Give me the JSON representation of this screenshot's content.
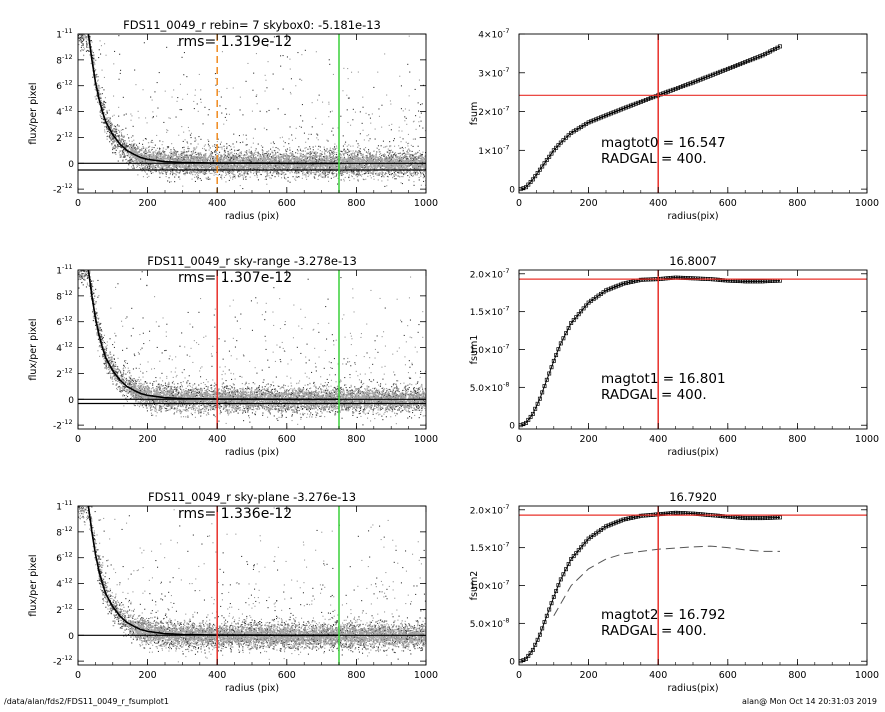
{
  "footer": {
    "left": "/data/alan/fds2/FDS11_0049_r_fsumplot1",
    "right": "alan@  Mon Oct 14 20:31:03 2019"
  },
  "colors": {
    "red": "#e8302a",
    "green": "#3ad13a",
    "orange": "#f08a1e",
    "grey": "#9a9a9a",
    "black": "#000000"
  },
  "chart_data": [
    {
      "id": "p1",
      "type": "scatter",
      "title": "FDS11_0049_r rebin= 7    skybox0: -5.181e-13",
      "annotation": "rms= 1.319e-12",
      "xlabel": "radius (pix)",
      "ylabel": "flux/per pixel",
      "xlim": [
        0,
        1000
      ],
      "ylim": [
        -2.3e-12,
        1e-11
      ],
      "xticks": [
        {
          "v": 0,
          "label": "0"
        },
        {
          "v": 200,
          "label": "200"
        },
        {
          "v": 400,
          "label": "400"
        },
        {
          "v": 600,
          "label": "600"
        },
        {
          "v": 800,
          "label": "800"
        },
        {
          "v": 1000,
          "label": "1000"
        }
      ],
      "yticks": [
        {
          "v": -2e-12,
          "mant": "-2",
          "exp": "-12"
        },
        {
          "v": 0,
          "mant": "0",
          "exp": ""
        },
        {
          "v": 2e-12,
          "mant": "2",
          "exp": "-12"
        },
        {
          "v": 4e-12,
          "mant": "4",
          "exp": "-12"
        },
        {
          "v": 6e-12,
          "mant": "6",
          "exp": "-12"
        },
        {
          "v": 8e-12,
          "mant": "8",
          "exp": "-12"
        },
        {
          "v": 1e-11,
          "mant": "1",
          "exp": "-11"
        }
      ],
      "hlines": [
        {
          "y": 0,
          "color": "black"
        },
        {
          "y": -5.181e-13,
          "color": "black"
        }
      ],
      "vlines": [
        {
          "x": 400,
          "color": "orange",
          "dashed": true
        },
        {
          "x": 750,
          "color": "green"
        }
      ],
      "profile": [
        [
          30,
          1e-11
        ],
        [
          40,
          8e-12
        ],
        [
          50,
          6.3e-12
        ],
        [
          60,
          5e-12
        ],
        [
          70,
          4e-12
        ],
        [
          80,
          3.2e-12
        ],
        [
          100,
          2.2e-12
        ],
        [
          120,
          1.5e-12
        ],
        [
          140,
          1e-12
        ],
        [
          160,
          7e-13
        ],
        [
          180,
          4.5e-13
        ],
        [
          200,
          3e-13
        ],
        [
          250,
          1.2e-13
        ],
        [
          300,
          6e-14
        ],
        [
          400,
          2e-14
        ],
        [
          500,
          1e-14
        ],
        [
          600,
          0
        ],
        [
          750,
          0
        ]
      ]
    },
    {
      "id": "p2",
      "type": "line",
      "title": "",
      "annotation_lines": [
        "magtot0 =  16.547",
        "RADGAL =    400."
      ],
      "xlabel": "radius(pix)",
      "ylabel": "fsum",
      "xlim": [
        0,
        1000
      ],
      "ylim": [
        -1e-08,
        4e-07
      ],
      "xticks": [
        {
          "v": 0,
          "label": "0"
        },
        {
          "v": 200,
          "label": "200"
        },
        {
          "v": 400,
          "label": "400"
        },
        {
          "v": 600,
          "label": "600"
        },
        {
          "v": 800,
          "label": "800"
        },
        {
          "v": 1000,
          "label": "1000"
        }
      ],
      "yticks": [
        {
          "v": 0,
          "mant": "0",
          "exp": ""
        },
        {
          "v": 1e-07,
          "mant": "1×10",
          "exp": "-7"
        },
        {
          "v": 2e-07,
          "mant": "2×10",
          "exp": "-7"
        },
        {
          "v": 3e-07,
          "mant": "3×10",
          "exp": "-7"
        },
        {
          "v": 4e-07,
          "mant": "4×10",
          "exp": "-7"
        }
      ],
      "hlines": [
        {
          "y": 2.42e-07,
          "color": "red"
        }
      ],
      "vlines": [
        {
          "x": 400,
          "color": "red"
        }
      ],
      "series": [
        {
          "points": [
            [
              5,
              0
            ],
            [
              20,
              5e-09
            ],
            [
              40,
              2.5e-08
            ],
            [
              60,
              5e-08
            ],
            [
              80,
              7.5e-08
            ],
            [
              100,
              1e-07
            ],
            [
              120,
              1.2e-07
            ],
            [
              150,
              1.45e-07
            ],
            [
              200,
              1.72e-07
            ],
            [
              250,
              1.9e-07
            ],
            [
              300,
              2.08e-07
            ],
            [
              350,
              2.25e-07
            ],
            [
              400,
              2.42e-07
            ],
            [
              500,
              2.75e-07
            ],
            [
              600,
              3.1e-07
            ],
            [
              700,
              3.45e-07
            ],
            [
              750,
              3.68e-07
            ]
          ],
          "style": "markers"
        }
      ]
    },
    {
      "id": "p3",
      "type": "scatter",
      "title": "FDS11_0049_r sky-range -3.278e-13",
      "annotation": "rms= 1.307e-12",
      "xlabel": "radius (pix)",
      "ylabel": "flux/per pixel",
      "xlim": [
        0,
        1000
      ],
      "ylim": [
        -2.3e-12,
        1e-11
      ],
      "xticks": [
        {
          "v": 0,
          "label": "0"
        },
        {
          "v": 200,
          "label": "200"
        },
        {
          "v": 400,
          "label": "400"
        },
        {
          "v": 600,
          "label": "600"
        },
        {
          "v": 800,
          "label": "800"
        },
        {
          "v": 1000,
          "label": "1000"
        }
      ],
      "yticks": [
        {
          "v": -2e-12,
          "mant": "-2",
          "exp": "-12"
        },
        {
          "v": 0,
          "mant": "0",
          "exp": ""
        },
        {
          "v": 2e-12,
          "mant": "2",
          "exp": "-12"
        },
        {
          "v": 4e-12,
          "mant": "4",
          "exp": "-12"
        },
        {
          "v": 6e-12,
          "mant": "6",
          "exp": "-12"
        },
        {
          "v": 8e-12,
          "mant": "8",
          "exp": "-12"
        },
        {
          "v": 1e-11,
          "mant": "1",
          "exp": "-11"
        }
      ],
      "hlines": [
        {
          "y": 0,
          "color": "black"
        },
        {
          "y": -3.278e-13,
          "color": "black"
        }
      ],
      "vlines": [
        {
          "x": 400,
          "color": "red"
        },
        {
          "x": 750,
          "color": "green"
        }
      ],
      "profile": [
        [
          30,
          1e-11
        ],
        [
          40,
          8e-12
        ],
        [
          50,
          6.3e-12
        ],
        [
          60,
          5e-12
        ],
        [
          70,
          4e-12
        ],
        [
          80,
          3.2e-12
        ],
        [
          100,
          2.2e-12
        ],
        [
          120,
          1.5e-12
        ],
        [
          140,
          1e-12
        ],
        [
          160,
          7e-13
        ],
        [
          180,
          4.5e-13
        ],
        [
          200,
          3e-13
        ],
        [
          250,
          1.2e-13
        ],
        [
          300,
          6e-14
        ],
        [
          400,
          2e-14
        ],
        [
          500,
          1e-14
        ],
        [
          600,
          0
        ],
        [
          750,
          0
        ]
      ]
    },
    {
      "id": "p4",
      "type": "line",
      "title": "16.8007",
      "annotation_lines": [
        "magtot1 =  16.801",
        "RADGAL =    400."
      ],
      "xlabel": "radius(pix)",
      "ylabel": "fsum1",
      "xlim": [
        0,
        1000
      ],
      "ylim": [
        -5e-09,
        2.05e-07
      ],
      "xticks": [
        {
          "v": 0,
          "label": "0"
        },
        {
          "v": 200,
          "label": "200"
        },
        {
          "v": 400,
          "label": "400"
        },
        {
          "v": 600,
          "label": "600"
        },
        {
          "v": 800,
          "label": "800"
        },
        {
          "v": 1000,
          "label": "1000"
        }
      ],
      "yticks": [
        {
          "v": 0,
          "mant": "0",
          "exp": ""
        },
        {
          "v": 5e-08,
          "mant": "5.0×10",
          "exp": "-8"
        },
        {
          "v": 1e-07,
          "mant": "1.0×10",
          "exp": "-7"
        },
        {
          "v": 1.5e-07,
          "mant": "1.5×10",
          "exp": "-7"
        },
        {
          "v": 2e-07,
          "mant": "2.0×10",
          "exp": "-7"
        }
      ],
      "hlines": [
        {
          "y": 1.93e-07,
          "color": "red"
        }
      ],
      "vlines": [
        {
          "x": 400,
          "color": "red"
        }
      ],
      "series": [
        {
          "points": [
            [
              5,
              0
            ],
            [
              20,
              3e-09
            ],
            [
              40,
              1.5e-08
            ],
            [
              60,
              3.5e-08
            ],
            [
              80,
              6e-08
            ],
            [
              100,
              8.5e-08
            ],
            [
              120,
              1.08e-07
            ],
            [
              150,
              1.35e-07
            ],
            [
              200,
              1.62e-07
            ],
            [
              250,
              1.78e-07
            ],
            [
              300,
              1.87e-07
            ],
            [
              350,
              1.92e-07
            ],
            [
              400,
              1.93e-07
            ],
            [
              450,
              1.95e-07
            ],
            [
              500,
              1.94e-07
            ],
            [
              550,
              1.93e-07
            ],
            [
              600,
              1.91e-07
            ],
            [
              650,
              1.9e-07
            ],
            [
              700,
              1.9e-07
            ],
            [
              750,
              1.91e-07
            ]
          ],
          "style": "markers"
        }
      ]
    },
    {
      "id": "p5",
      "type": "scatter",
      "title": "FDS11_0049_r sky-plane -3.276e-13",
      "annotation": "rms= 1.336e-12",
      "xlabel": "radius (pix)",
      "ylabel": "flux/per pixel",
      "xlim": [
        0,
        1000
      ],
      "ylim": [
        -2.3e-12,
        1e-11
      ],
      "xticks": [
        {
          "v": 0,
          "label": "0"
        },
        {
          "v": 200,
          "label": "200"
        },
        {
          "v": 400,
          "label": "400"
        },
        {
          "v": 600,
          "label": "600"
        },
        {
          "v": 800,
          "label": "800"
        },
        {
          "v": 1000,
          "label": "1000"
        }
      ],
      "yticks": [
        {
          "v": -2e-12,
          "mant": "-2",
          "exp": "-12"
        },
        {
          "v": 0,
          "mant": "0",
          "exp": ""
        },
        {
          "v": 2e-12,
          "mant": "2",
          "exp": "-12"
        },
        {
          "v": 4e-12,
          "mant": "4",
          "exp": "-12"
        },
        {
          "v": 6e-12,
          "mant": "6",
          "exp": "-12"
        },
        {
          "v": 8e-12,
          "mant": "8",
          "exp": "-12"
        },
        {
          "v": 1e-11,
          "mant": "1",
          "exp": "-11"
        }
      ],
      "hlines": [
        {
          "y": 0,
          "color": "black"
        }
      ],
      "vlines": [
        {
          "x": 400,
          "color": "red"
        },
        {
          "x": 750,
          "color": "green"
        }
      ],
      "profile": [
        [
          30,
          1e-11
        ],
        [
          40,
          8e-12
        ],
        [
          50,
          6.3e-12
        ],
        [
          60,
          5e-12
        ],
        [
          70,
          4e-12
        ],
        [
          80,
          3.2e-12
        ],
        [
          100,
          2.2e-12
        ],
        [
          120,
          1.5e-12
        ],
        [
          140,
          1e-12
        ],
        [
          160,
          7e-13
        ],
        [
          180,
          4.5e-13
        ],
        [
          200,
          3e-13
        ],
        [
          250,
          1.2e-13
        ],
        [
          300,
          6e-14
        ],
        [
          400,
          2e-14
        ],
        [
          500,
          1e-14
        ],
        [
          600,
          0
        ],
        [
          750,
          0
        ]
      ]
    },
    {
      "id": "p6",
      "type": "line",
      "title": "16.7920",
      "annotation_lines": [
        "magtot2 =  16.792",
        "RADGAL =    400."
      ],
      "xlabel": "radius(pix)",
      "ylabel": "fsum2",
      "xlim": [
        0,
        1000
      ],
      "ylim": [
        -5e-09,
        2.05e-07
      ],
      "xticks": [
        {
          "v": 0,
          "label": "0"
        },
        {
          "v": 200,
          "label": "200"
        },
        {
          "v": 400,
          "label": "400"
        },
        {
          "v": 600,
          "label": "600"
        },
        {
          "v": 800,
          "label": "800"
        },
        {
          "v": 1000,
          "label": "1000"
        }
      ],
      "yticks": [
        {
          "v": 0,
          "mant": "0",
          "exp": ""
        },
        {
          "v": 5e-08,
          "mant": "5.0×10",
          "exp": "-8"
        },
        {
          "v": 1e-07,
          "mant": "1.0×10",
          "exp": "-7"
        },
        {
          "v": 1.5e-07,
          "mant": "1.5×10",
          "exp": "-7"
        },
        {
          "v": 2e-07,
          "mant": "2.0×10",
          "exp": "-7"
        }
      ],
      "hlines": [
        {
          "y": 1.93e-07,
          "color": "red"
        }
      ],
      "vlines": [
        {
          "x": 400,
          "color": "red"
        }
      ],
      "series": [
        {
          "points": [
            [
              5,
              0
            ],
            [
              20,
              3e-09
            ],
            [
              40,
              1.5e-08
            ],
            [
              60,
              3.5e-08
            ],
            [
              80,
              6e-08
            ],
            [
              100,
              8.5e-08
            ],
            [
              120,
              1.08e-07
            ],
            [
              150,
              1.35e-07
            ],
            [
              200,
              1.62e-07
            ],
            [
              250,
              1.78e-07
            ],
            [
              300,
              1.87e-07
            ],
            [
              350,
              1.92e-07
            ],
            [
              400,
              1.94e-07
            ],
            [
              450,
              1.96e-07
            ],
            [
              500,
              1.95e-07
            ],
            [
              550,
              1.93e-07
            ],
            [
              600,
              1.91e-07
            ],
            [
              650,
              1.89e-07
            ],
            [
              700,
              1.89e-07
            ],
            [
              750,
              1.9e-07
            ]
          ],
          "style": "markers"
        },
        {
          "points": [
            [
              100,
              6e-08
            ],
            [
              150,
              1e-07
            ],
            [
              200,
              1.22e-07
            ],
            [
              250,
              1.35e-07
            ],
            [
              300,
              1.42e-07
            ],
            [
              400,
              1.48e-07
            ],
            [
              500,
              1.51e-07
            ],
            [
              550,
              1.52e-07
            ],
            [
              600,
              1.5e-07
            ],
            [
              650,
              1.47e-07
            ],
            [
              700,
              1.45e-07
            ],
            [
              750,
              1.45e-07
            ]
          ],
          "style": "dashed"
        }
      ]
    }
  ]
}
